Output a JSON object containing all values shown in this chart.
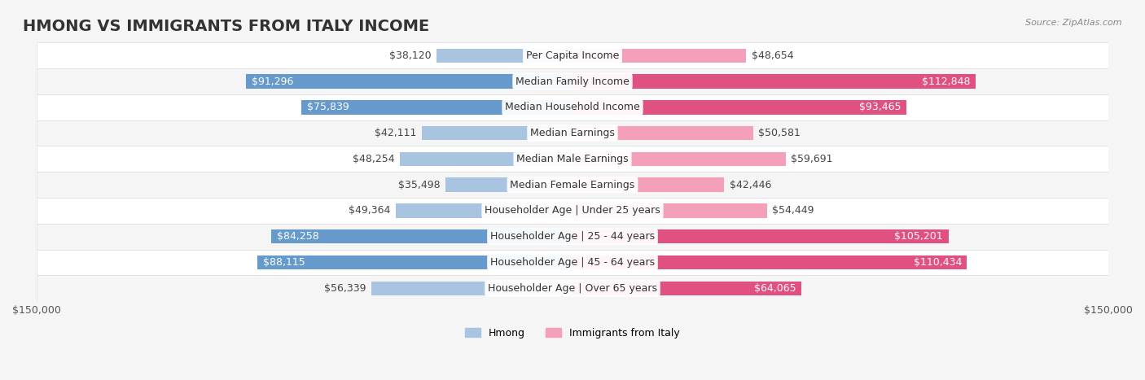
{
  "title": "HMONG VS IMMIGRANTS FROM ITALY INCOME",
  "source": "Source: ZipAtlas.com",
  "categories": [
    "Per Capita Income",
    "Median Family Income",
    "Median Household Income",
    "Median Earnings",
    "Median Male Earnings",
    "Median Female Earnings",
    "Householder Age | Under 25 years",
    "Householder Age | 25 - 44 years",
    "Householder Age | 45 - 64 years",
    "Householder Age | Over 65 years"
  ],
  "hmong_values": [
    38120,
    91296,
    75839,
    42111,
    48254,
    35498,
    49364,
    84258,
    88115,
    56339
  ],
  "italy_values": [
    48654,
    112848,
    93465,
    50581,
    59691,
    42446,
    54449,
    105201,
    110434,
    64065
  ],
  "hmong_labels": [
    "$38,120",
    "$91,296",
    "$75,839",
    "$42,111",
    "$48,254",
    "$35,498",
    "$49,364",
    "$84,258",
    "$88,115",
    "$56,339"
  ],
  "italy_labels": [
    "$48,654",
    "$112,848",
    "$93,465",
    "$50,581",
    "$59,691",
    "$42,446",
    "$54,449",
    "$105,201",
    "$110,434",
    "$64,065"
  ],
  "x_axis_label_left": "$150,000",
  "x_axis_label_right": "$150,000",
  "max_value": 150000,
  "hmong_color_light": "#a8c4e0",
  "hmong_color_dark": "#6699cc",
  "italy_color_light": "#f4a0b8",
  "italy_color_dark": "#e05080",
  "label_color_outside": "#555555",
  "label_color_inside": "#ffffff",
  "background_color": "#f5f5f5",
  "row_bg_color": "#ffffff",
  "row_alt_color": "#f0f0f0",
  "bar_height": 0.55,
  "legend_hmong": "Hmong",
  "legend_italy": "Immigrants from Italy",
  "title_fontsize": 14,
  "label_fontsize": 9,
  "category_fontsize": 9
}
